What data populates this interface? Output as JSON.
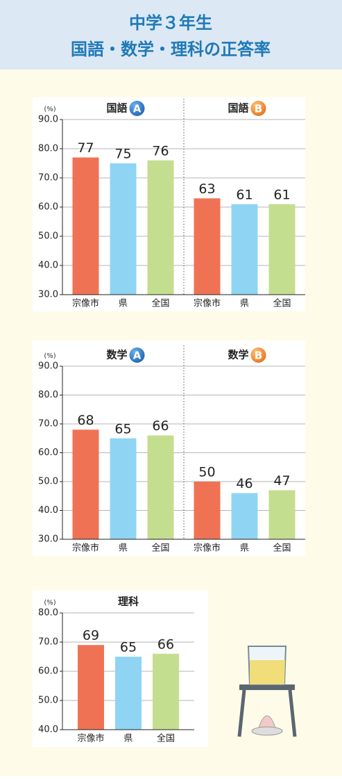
{
  "header": {
    "title_line1": "中学３年生",
    "title_line2": "国語・数学・理科の正答率"
  },
  "chart_data": [
    {
      "type": "bar",
      "ylabel": "(%)",
      "ylim": [
        30,
        90
      ],
      "yticks": [
        {
          "value": 30,
          "label": "30.0"
        },
        {
          "value": 40,
          "label": "40.0"
        },
        {
          "value": 50,
          "label": "50.0"
        },
        {
          "value": 60,
          "label": "60.0"
        },
        {
          "value": 70,
          "label": "70.0"
        },
        {
          "value": 80,
          "label": "80.0"
        },
        {
          "value": 90,
          "label": "90.0"
        }
      ],
      "colors": [
        "#f07254",
        "#8fd5f3",
        "#c4de8f"
      ],
      "grid": true,
      "groups": [
        {
          "title": "国語",
          "badge": "A",
          "categories": [
            "宗像市",
            "県",
            "全国"
          ],
          "values": [
            77,
            75,
            76
          ]
        },
        {
          "title": "国語",
          "badge": "B",
          "categories": [
            "宗像市",
            "県",
            "全国"
          ],
          "values": [
            63,
            61,
            61
          ]
        }
      ]
    },
    {
      "type": "bar",
      "ylabel": "(%)",
      "ylim": [
        30,
        90
      ],
      "yticks": [
        {
          "value": 30,
          "label": "30.0"
        },
        {
          "value": 40,
          "label": "40.0"
        },
        {
          "value": 50,
          "label": "50.0"
        },
        {
          "value": 60,
          "label": "60.0"
        },
        {
          "value": 70,
          "label": "70.0"
        },
        {
          "value": 80,
          "label": "80.0"
        },
        {
          "value": 90,
          "label": "90.0"
        }
      ],
      "colors": [
        "#f07254",
        "#8fd5f3",
        "#c4de8f"
      ],
      "grid": true,
      "groups": [
        {
          "title": "数学",
          "badge": "A",
          "categories": [
            "宗像市",
            "県",
            "全国"
          ],
          "values": [
            68,
            65,
            66
          ]
        },
        {
          "title": "数学",
          "badge": "B",
          "categories": [
            "宗像市",
            "県",
            "全国"
          ],
          "values": [
            50,
            46,
            47
          ]
        }
      ]
    },
    {
      "type": "bar",
      "ylabel": "(%)",
      "ylim": [
        40,
        80
      ],
      "yticks": [
        {
          "value": 40,
          "label": "40.0"
        },
        {
          "value": 50,
          "label": "50.0"
        },
        {
          "value": 60,
          "label": "60.0"
        },
        {
          "value": 70,
          "label": "70.0"
        },
        {
          "value": 80,
          "label": "80.0"
        }
      ],
      "colors": [
        "#f07254",
        "#8fd5f3",
        "#c4de8f"
      ],
      "grid": true,
      "groups": [
        {
          "title": "理科",
          "categories": [
            "宗像市",
            "県",
            "全国"
          ],
          "values": [
            69,
            65,
            66
          ]
        }
      ]
    }
  ]
}
